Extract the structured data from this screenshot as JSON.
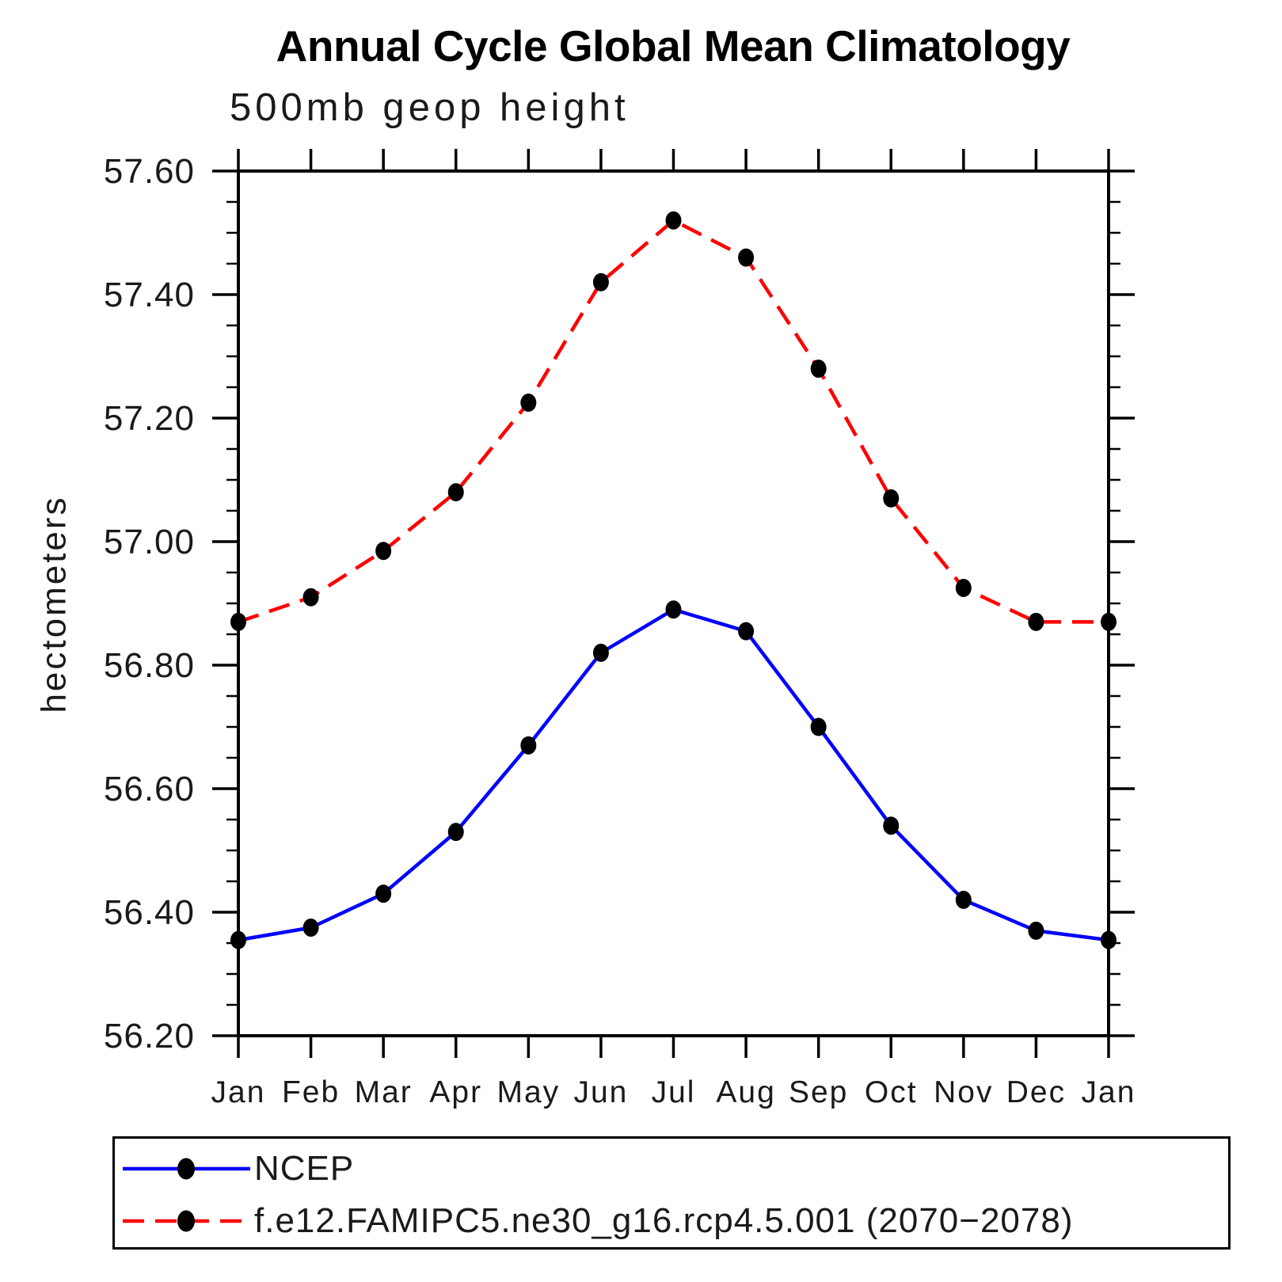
{
  "page": {
    "background": "#ffffff"
  },
  "chart_data": {
    "type": "line",
    "title": "Annual Cycle Global Mean Climatology",
    "subtitle": "500mb geop height",
    "xlabel": "",
    "ylabel": "hectometers",
    "x_categories": [
      "Jan",
      "Feb",
      "Mar",
      "Apr",
      "May",
      "Jun",
      "Jul",
      "Aug",
      "Sep",
      "Oct",
      "Nov",
      "Dec",
      "Jan"
    ],
    "y_axis": {
      "min": 56.2,
      "max": 57.6,
      "major_step": 0.2,
      "minor_step": 0.05,
      "major_tick_labels": [
        "56.20",
        "56.40",
        "56.60",
        "56.80",
        "57.00",
        "57.20",
        "57.40",
        "57.60"
      ]
    },
    "grid": false,
    "legend_position": "bottom-left-box",
    "series": [
      {
        "name": "NCEP",
        "color": "#0000ff",
        "line_style": "solid",
        "marker": "filled-circle",
        "marker_color": "#000000",
        "values": [
          56.355,
          56.375,
          56.43,
          56.53,
          56.67,
          56.82,
          56.89,
          56.855,
          56.7,
          56.54,
          56.42,
          56.37,
          56.355
        ]
      },
      {
        "name": "f.e12.FAMIPC5.ne30_g16.rcp4.5.001 (2070−2078)",
        "color": "#ff0000",
        "line_style": "dashed",
        "marker": "filled-circle",
        "marker_color": "#000000",
        "values": [
          56.87,
          56.91,
          56.985,
          57.08,
          57.225,
          57.42,
          57.52,
          57.46,
          57.28,
          57.07,
          56.925,
          56.87,
          56.87
        ]
      }
    ]
  }
}
